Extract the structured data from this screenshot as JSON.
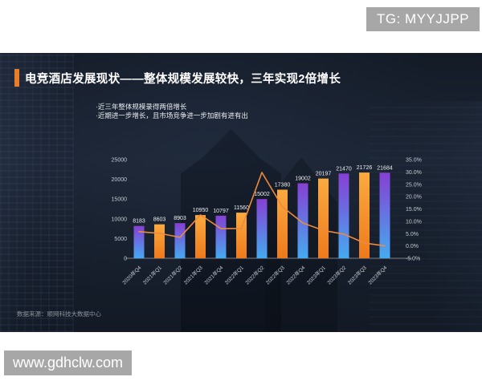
{
  "watermark_top": {
    "text": "TG: MYYJJPP"
  },
  "watermark_bottom": {
    "text": "www.gdhclw.com"
  },
  "slide": {
    "title": "电竞酒店发展现状——整体规模发展较快，三年实现2倍增长",
    "bullets": [
      "·近三年整体规模录得两倍增长",
      "·近期进一步增长，且市场竞争进一步加剧有进有出"
    ],
    "source": "数据来源：顺网科技大数据中心"
  },
  "colors": {
    "accent_orange": "#E97C26",
    "slide_background": "#1A2330",
    "bar_purple_gradient": [
      "#8640D4",
      "#45AAF0"
    ],
    "bar_orange_gradient": [
      "#FBAA3F",
      "#EE7A1C"
    ],
    "line_color": "#ED8A3C",
    "axis_text": "#C3C9D1",
    "value_label_text": "#EDEFF3",
    "watermark_gray": "#A7A7A7"
  },
  "chart_data": {
    "type": "bar+line combo",
    "title": "",
    "xlabel": "",
    "ylabel_left": "",
    "ylabel_right": "",
    "legend": "none",
    "grid": "off",
    "categories": [
      "2020年Q4",
      "2021年Q1",
      "2021年Q2",
      "2021年Q3",
      "2021年Q4",
      "2022年Q1",
      "2022年Q2",
      "2022年Q3",
      "2022年Q4",
      "2023年Q1",
      "2023年Q2",
      "2023年Q3",
      "2023年Q4"
    ],
    "bar_values": [
      8183,
      8603,
      8903,
      10950,
      10797,
      11560,
      15002,
      17380,
      19002,
      20197,
      21470,
      21726,
      21684
    ],
    "line_values_pct": [
      5.8,
      5.1,
      3.5,
      12.6,
      7.0,
      7.1,
      29.8,
      15.9,
      9.3,
      6.3,
      4.8,
      1.2,
      0.0
    ],
    "left_axis": {
      "min": 0,
      "max": 25000,
      "ticks": [
        0,
        5000,
        10000,
        15000,
        20000,
        25000
      ]
    },
    "right_axis": {
      "min": -5,
      "max": 35,
      "tick_labels": [
        "-5.0%",
        "0.0%",
        "5.0%",
        "10.0%",
        "15.0%",
        "20.0%",
        "25.0%",
        "30.0%",
        "35.0%"
      ]
    }
  }
}
